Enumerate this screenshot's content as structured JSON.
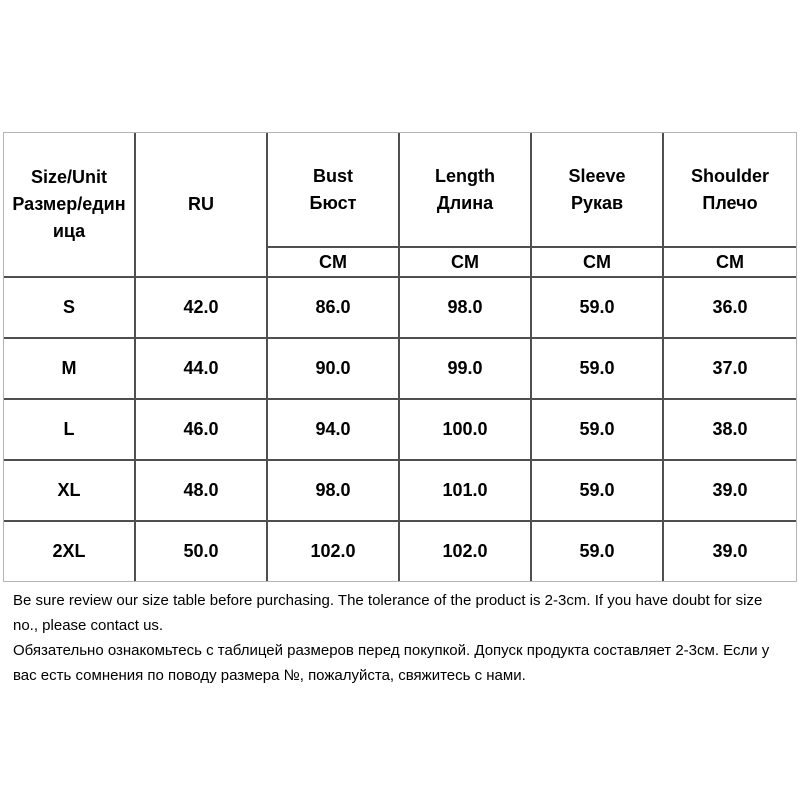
{
  "table": {
    "columns": [
      {
        "en": "Size/Unit",
        "ru": "Размер/единица",
        "unit": ""
      },
      {
        "en": "RU",
        "ru": "",
        "unit": ""
      },
      {
        "en": "Bust",
        "ru": "Бюст",
        "unit": "CM"
      },
      {
        "en": "Length",
        "ru": "Длина",
        "unit": "CM"
      },
      {
        "en": "Sleeve",
        "ru": "Рукав",
        "unit": "CM"
      },
      {
        "en": "Shoulder",
        "ru": "Плечо",
        "unit": "CM"
      }
    ],
    "rows": [
      {
        "size": "S",
        "values": [
          "42.0",
          "86.0",
          "98.0",
          "59.0",
          "36.0"
        ]
      },
      {
        "size": "M",
        "values": [
          "44.0",
          "90.0",
          "99.0",
          "59.0",
          "37.0"
        ]
      },
      {
        "size": "L",
        "values": [
          "46.0",
          "94.0",
          "100.0",
          "59.0",
          "38.0"
        ]
      },
      {
        "size": "XL",
        "values": [
          "48.0",
          "98.0",
          "101.0",
          "59.0",
          "39.0"
        ]
      },
      {
        "size": "2XL",
        "values": [
          "50.0",
          "102.0",
          "102.0",
          "59.0",
          "39.0"
        ]
      }
    ]
  },
  "notes": {
    "en": "Be sure review our size table before purchasing. The tolerance of the product is 2-3cm. If you have doubt for size no., please contact us.",
    "ru": "Обязательно ознакомьтесь с таблицей размеров перед покупкой. Допуск продукта составляет 2-3см. Если у вас есть сомнения по поводу размера №, пожалуйста, свяжитесь с нами."
  },
  "colors": {
    "background": "#ffffff",
    "text": "#000000",
    "inner_border": "#4f4f4f",
    "outer_border": "#b3b3b3"
  }
}
